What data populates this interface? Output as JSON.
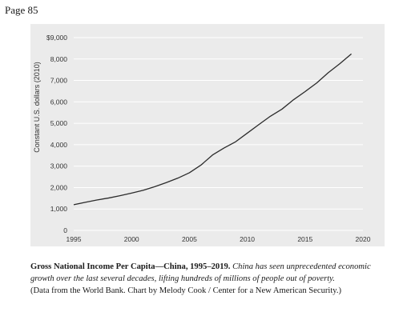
{
  "page_label": "Page 85",
  "caption": {
    "title": "Gross National Income Per Capita—China, 1995–2019.",
    "body": "China has seen unprecedented economic growth over the last several decades, lifting hundreds of millions of people out of poverty.",
    "source": "(Data from the World Bank. Chart by Melody Cook / Center for a New American Security.)"
  },
  "chart_data": {
    "type": "line",
    "title": "",
    "xlabel": "",
    "ylabel": "Constant U.S. dollars (2010)",
    "xlim": [
      1995,
      2020
    ],
    "ylim": [
      0,
      9000
    ],
    "x_ticks": [
      1995,
      2000,
      2005,
      2010,
      2015,
      2020
    ],
    "y_ticks": [
      0,
      1000,
      2000,
      3000,
      4000,
      5000,
      6000,
      7000,
      8000,
      9000
    ],
    "y_tick_labels": [
      "0",
      "1,000",
      "2,000",
      "3,000",
      "4,000",
      "5,000",
      "6,000",
      "7,000",
      "8,000",
      "$9,000"
    ],
    "grid": true,
    "colors": {
      "line": "#2b2b2b",
      "grid": "#ffffff",
      "background": "#ebebeb"
    },
    "series": [
      {
        "x": [
          1995,
          1996,
          1997,
          1998,
          1999,
          2000,
          2001,
          2002,
          2003,
          2004,
          2005,
          2006,
          2007,
          2008,
          2009,
          2010,
          2011,
          2012,
          2013,
          2014,
          2015,
          2016,
          2017,
          2018,
          2019
        ],
        "values": [
          1200,
          1310,
          1420,
          1510,
          1620,
          1740,
          1870,
          2040,
          2230,
          2440,
          2690,
          3050,
          3520,
          3850,
          4140,
          4540,
          4940,
          5330,
          5660,
          6100,
          6480,
          6880,
          7360,
          7780,
          8240
        ]
      }
    ]
  }
}
